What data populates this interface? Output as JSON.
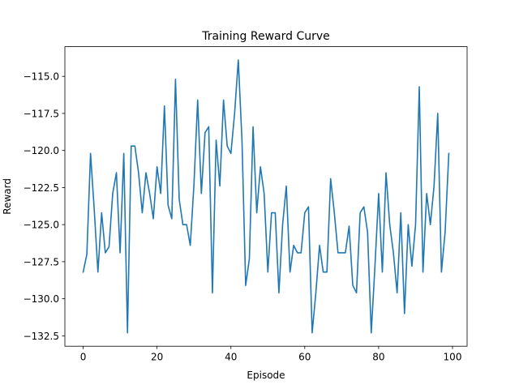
{
  "chart_data": {
    "type": "line",
    "title": "Training Reward Curve",
    "xlabel": "Episode",
    "ylabel": "Reward",
    "xlim": [
      -4.95,
      103.95
    ],
    "ylim": [
      -133.2,
      -113.0
    ],
    "xticks": [
      0,
      20,
      40,
      60,
      80,
      100
    ],
    "yticks": [
      -132.5,
      -130.0,
      -127.5,
      -125.0,
      -122.5,
      -120.0,
      -117.5,
      -115.0
    ],
    "ytick_labels": [
      "−132.5",
      "−130.0",
      "−127.5",
      "−125.0",
      "−122.5",
      "−120.0",
      "−117.5",
      "−115.0"
    ],
    "grid": false,
    "line_color": "#1f77b4",
    "series": [
      {
        "x": [
          0,
          1,
          2,
          3,
          4,
          5,
          6,
          7,
          8,
          9,
          10,
          11,
          12,
          13,
          14,
          15,
          16,
          17,
          18,
          19,
          20,
          21,
          22,
          23,
          24,
          25,
          26,
          27,
          28,
          29,
          30,
          31,
          32,
          33,
          34,
          35,
          36,
          37,
          38,
          39,
          40,
          41,
          42,
          43,
          44,
          45,
          46,
          47,
          48,
          49,
          50,
          51,
          52,
          53,
          54,
          55,
          56,
          57,
          58,
          59,
          60,
          61,
          62,
          63,
          64,
          65,
          66,
          67,
          68,
          69,
          70,
          71,
          72,
          73,
          74,
          75,
          76,
          77,
          78,
          79,
          80,
          81,
          82,
          83,
          84,
          85,
          86,
          87,
          88,
          89,
          90,
          91,
          92,
          93,
          94,
          95,
          96,
          97,
          98,
          99
        ],
        "values": [
          -128.2,
          -127.0,
          -120.2,
          -124.0,
          -128.2,
          -124.2,
          -126.9,
          -126.5,
          -122.9,
          -121.5,
          -126.9,
          -120.2,
          -132.3,
          -119.7,
          -119.7,
          -121.5,
          -124.2,
          -121.5,
          -122.9,
          -124.6,
          -121.1,
          -122.9,
          -117.0,
          -123.7,
          -124.6,
          -115.2,
          -123.3,
          -125.0,
          -125.0,
          -126.4,
          -122.3,
          -116.6,
          -122.9,
          -118.8,
          -118.4,
          -129.6,
          -119.3,
          -122.4,
          -116.6,
          -119.7,
          -120.2,
          -117.5,
          -113.9,
          -119.3,
          -129.1,
          -127.3,
          -118.4,
          -124.2,
          -121.1,
          -122.9,
          -128.2,
          -124.2,
          -124.2,
          -129.6,
          -125.0,
          -122.4,
          -128.2,
          -126.4,
          -126.9,
          -126.9,
          -124.2,
          -123.8,
          -132.3,
          -129.6,
          -126.4,
          -128.2,
          -128.2,
          -121.9,
          -124.2,
          -126.9,
          -126.9,
          -126.9,
          -125.1,
          -129.1,
          -129.6,
          -124.2,
          -123.8,
          -125.5,
          -132.3,
          -127.8,
          -122.9,
          -128.2,
          -121.5,
          -125.0,
          -126.9,
          -129.6,
          -124.2,
          -131.0,
          -125.0,
          -127.8,
          -125.0,
          -115.7,
          -128.2,
          -122.9,
          -125.0,
          -122.4,
          -117.5,
          -128.2,
          -125.5,
          -120.2
        ]
      }
    ]
  }
}
